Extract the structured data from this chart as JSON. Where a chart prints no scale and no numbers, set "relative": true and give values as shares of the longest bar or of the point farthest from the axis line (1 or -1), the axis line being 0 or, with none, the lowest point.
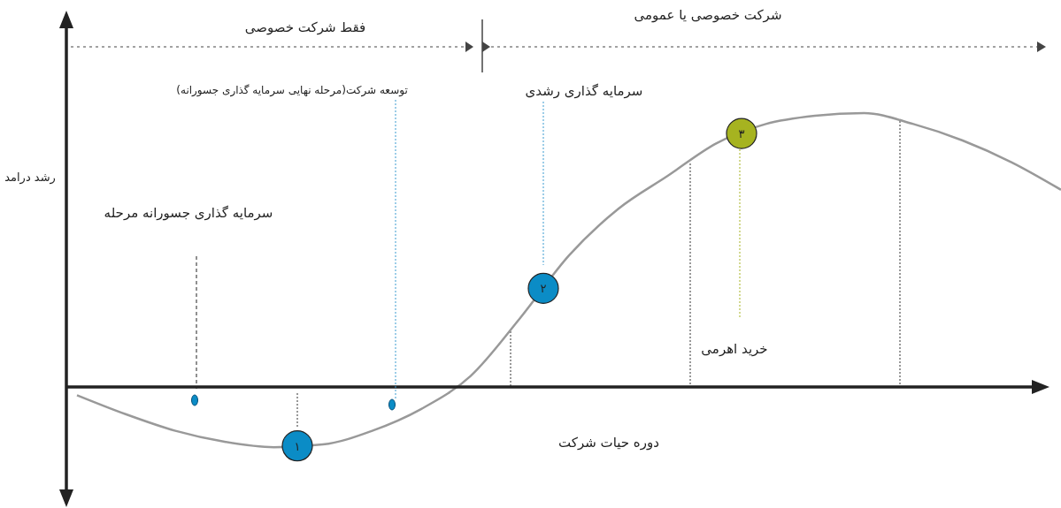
{
  "chart_data": {
    "type": "line",
    "relative": true,
    "xlabel": "دوره حیات شرکت",
    "ylabel": "رشد درامد",
    "categories": [
      null,
      null,
      null,
      null,
      null,
      null,
      null,
      null,
      null,
      null,
      null,
      null,
      null,
      null,
      null,
      null,
      null,
      null,
      null,
      null,
      null
    ],
    "series": [
      {
        "color": "#999999",
        "values": [
          -0.03,
          -0.1,
          -0.16,
          -0.2,
          -0.22,
          -0.21,
          -0.16,
          -0.08,
          0.04,
          0.25,
          0.48,
          0.65,
          0.77,
          0.89,
          0.96,
          0.99,
          1.0,
          0.96,
          0.9,
          0.82,
          0.72
        ]
      }
    ],
    "annotations": [
      "فقط شرکت خصوصی",
      "شرکت خصوصی یا عمومی",
      "سرمایه گذاری جسورانه مرحله",
      "توسعه شرکت(مرحله نهایی سرمایه گذاری جسورانه)",
      "سرمایه گذاری رشدی",
      "خرید اهرمی",
      "۱",
      "۲",
      "۳"
    ]
  }
}
